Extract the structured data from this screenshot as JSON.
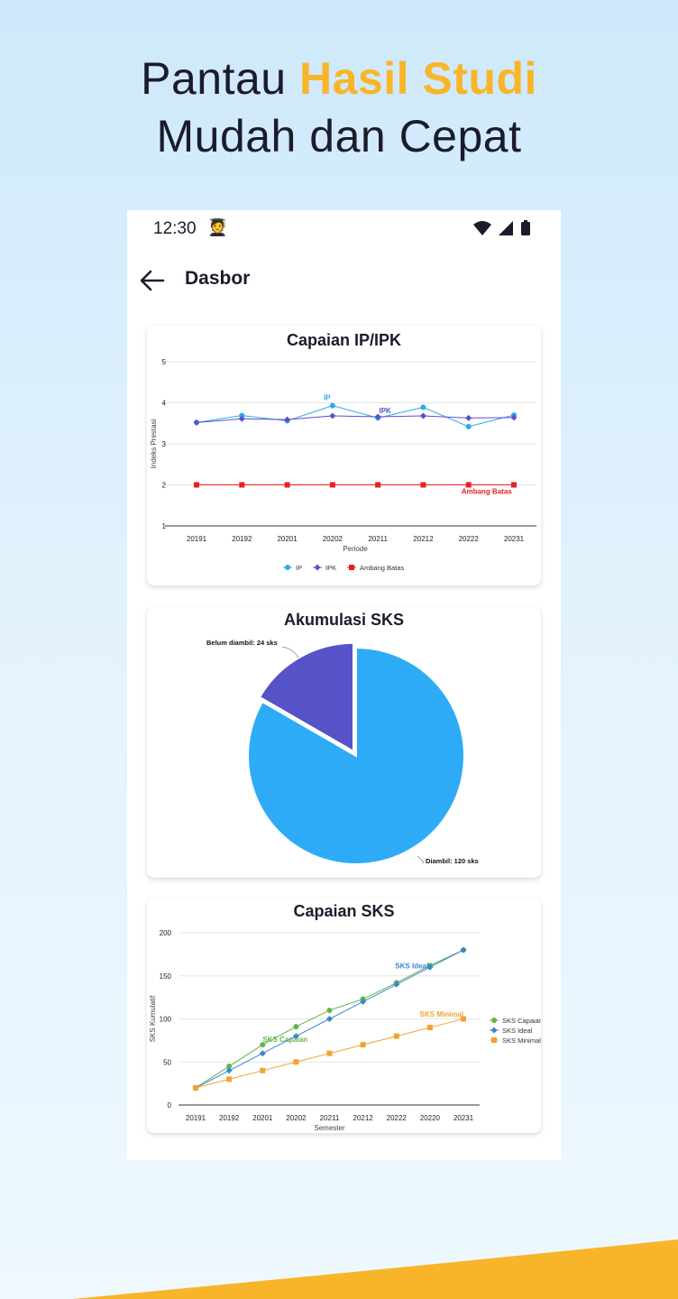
{
  "headline": {
    "line1_pre": "Pantau ",
    "line1_accent": "Hasil Studi",
    "line2": "Mudah dan Cepat"
  },
  "status_bar": {
    "time": "12:30",
    "emoji": "🧑‍🎓"
  },
  "app_bar": {
    "title": "Dasbor"
  },
  "chart_data": [
    {
      "type": "line",
      "title": "Capaian IP/IPK",
      "xlabel": "Periode",
      "ylabel": "Indeks Prestasi",
      "categories": [
        "20191",
        "20192",
        "20201",
        "20202",
        "20211",
        "20212",
        "20222",
        "20231"
      ],
      "ylim": [
        1,
        5
      ],
      "yticks": [
        "1",
        "2",
        "3",
        "4",
        "5"
      ],
      "grid": true,
      "legend": "bottom",
      "series": [
        {
          "name": "IP",
          "color": "#2fa8ec",
          "marker": "circle",
          "label": "IP",
          "values": [
            3.52,
            3.69,
            3.56,
            3.93,
            3.63,
            3.89,
            3.42,
            3.7
          ]
        },
        {
          "name": "IPK",
          "color": "#5b4fd0",
          "marker": "diamond",
          "label": "IPK",
          "values": [
            3.52,
            3.61,
            3.59,
            3.68,
            3.66,
            3.68,
            3.63,
            3.64
          ]
        },
        {
          "name": "Ambang Batas",
          "color": "#ee1c1c",
          "marker": "square",
          "label": "Ambang Batas",
          "values": [
            2,
            2,
            2,
            2,
            2,
            2,
            2,
            2
          ]
        }
      ]
    },
    {
      "type": "pie",
      "title": "Akumulasi SKS",
      "slices": [
        {
          "name": "Diambil",
          "value": 120,
          "unit": "sks",
          "label": "Diambil: 120 sks",
          "color": "#2eabf7"
        },
        {
          "name": "Belum diambil",
          "value": 24,
          "unit": "sks",
          "label": "Belum diambil: 24 sks",
          "color": "#5652c8"
        }
      ]
    },
    {
      "type": "line",
      "title": "Capaian SKS",
      "xlabel": "Semester",
      "ylabel": "SKS Kumulatif",
      "categories": [
        "20191",
        "20192",
        "20201",
        "20202",
        "20211",
        "20212",
        "20222",
        "20220",
        "20231"
      ],
      "ylim": [
        0,
        200
      ],
      "yticks": [
        "0",
        "50",
        "100",
        "150",
        "200"
      ],
      "grid": true,
      "legend": "right",
      "series": [
        {
          "name": "SKS Capaian",
          "color": "#62b543",
          "marker": "circle",
          "label": "SKS Capaian",
          "values": [
            20,
            45,
            70,
            91,
            110,
            123,
            142,
            162,
            180
          ]
        },
        {
          "name": "SKS Ideal",
          "color": "#3a86cf",
          "marker": "diamond",
          "label": "SKS Ideal",
          "values": [
            20,
            40,
            60,
            80,
            100,
            120,
            140,
            160,
            180
          ]
        },
        {
          "name": "SKS Minimal",
          "color": "#f4a133",
          "marker": "square",
          "label": "SKS Minimal",
          "values": [
            20,
            30,
            40,
            50,
            60,
            70,
            80,
            90,
            100
          ]
        }
      ]
    }
  ]
}
